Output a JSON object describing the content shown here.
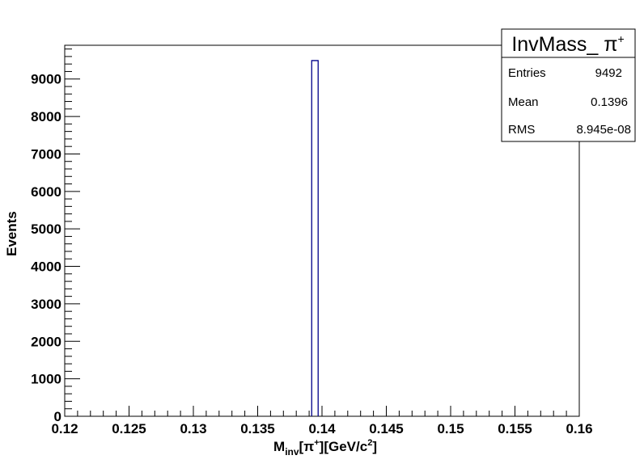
{
  "chart_data": {
    "type": "bar",
    "histogram": true,
    "xlabel_main": "M",
    "xlabel_sub": "inv",
    "xlabel_rest": "[π",
    "xlabel_sup": "+",
    "xlabel_tail": "][GeV/c",
    "xlabel_sup2": "2",
    "xlabel_end": "]",
    "ylabel": "Events",
    "xlim": [
      0.12,
      0.16
    ],
    "ylim": [
      0,
      9900
    ],
    "x_ticks": [
      "0.12",
      "0.125",
      "0.13",
      "0.135",
      "0.14",
      "0.145",
      "0.15",
      "0.155",
      "0.16"
    ],
    "y_ticks": [
      "0",
      "1000",
      "2000",
      "3000",
      "4000",
      "5000",
      "6000",
      "7000",
      "8000",
      "9000"
    ],
    "bins": [
      {
        "low": 0.1392,
        "high": 0.1397,
        "value": 9492
      }
    ],
    "line_color": "#00008b",
    "stats": {
      "title": "InvMass_ π",
      "title_sup": "+",
      "rows": [
        {
          "label": "Entries",
          "value": "9492"
        },
        {
          "label": "Mean",
          "value": "0.1396"
        },
        {
          "label": "RMS",
          "value": "8.945e-08"
        }
      ]
    }
  }
}
